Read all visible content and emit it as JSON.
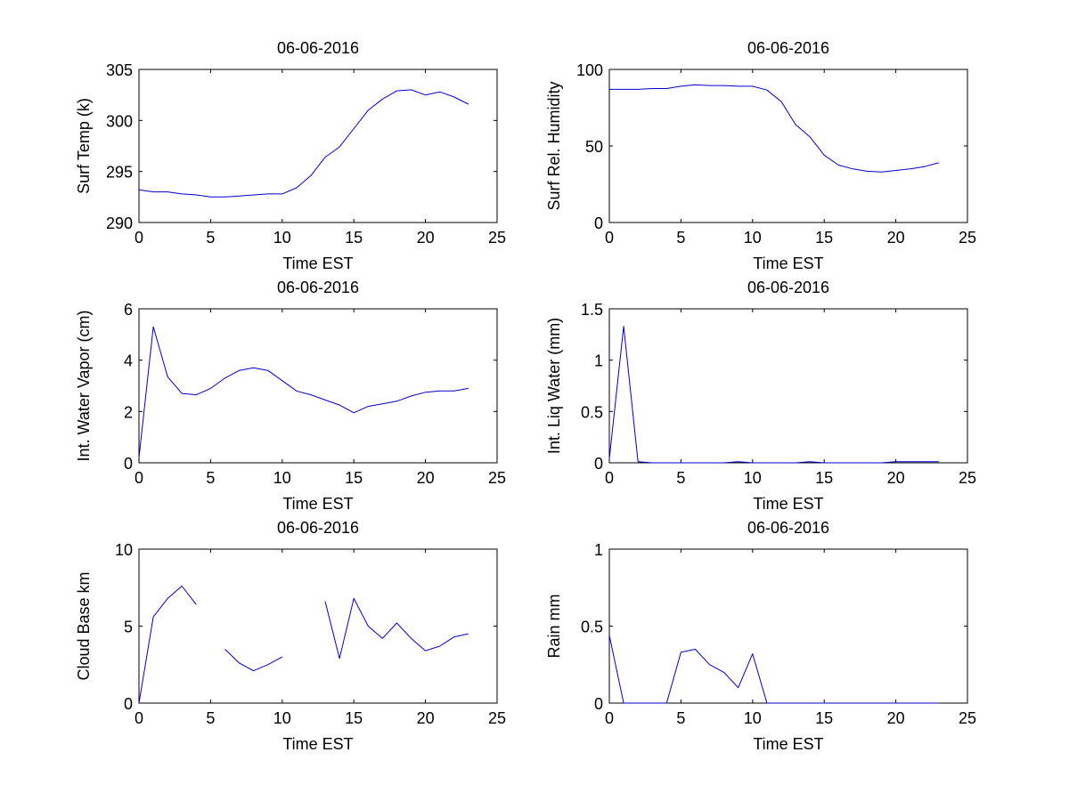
{
  "figure": {
    "background": "#ffffff",
    "line_color": "#0000cc",
    "axes_color": "#000000"
  },
  "chart_data": [
    {
      "type": "line",
      "title": "06-06-2016",
      "xlabel": "Time EST",
      "ylabel": "Surf Temp (k)",
      "xlim": [
        0,
        25
      ],
      "ylim": [
        290,
        305
      ],
      "xticks": [
        0,
        5,
        10,
        15,
        20,
        25
      ],
      "yticks": [
        290,
        295,
        300,
        305
      ],
      "xtick_labels": [
        "0",
        "5",
        "10",
        "15",
        "20",
        "25"
      ],
      "ytick_labels": [
        "290",
        "295",
        "300",
        "305"
      ],
      "series": [
        {
          "name": "Surf Temp",
          "x": [
            0,
            1,
            2,
            3,
            4,
            5,
            6,
            7,
            8,
            9,
            10,
            11,
            12,
            13,
            14,
            15,
            16,
            17,
            18,
            19,
            20,
            21,
            22,
            23
          ],
          "y": [
            293.2,
            293.0,
            293.0,
            292.8,
            292.7,
            292.5,
            292.5,
            292.6,
            292.7,
            292.8,
            292.8,
            293.4,
            294.6,
            296.4,
            297.4,
            299.2,
            301.0,
            302.1,
            302.9,
            303.0,
            302.5,
            302.8,
            302.3,
            301.6
          ]
        }
      ]
    },
    {
      "type": "line",
      "title": "06-06-2016",
      "xlabel": "Time EST",
      "ylabel": "Surf Rel. Humidity",
      "xlim": [
        0,
        25
      ],
      "ylim": [
        0,
        100
      ],
      "xticks": [
        0,
        5,
        10,
        15,
        20,
        25
      ],
      "yticks": [
        0,
        50,
        100
      ],
      "xtick_labels": [
        "0",
        "5",
        "10",
        "15",
        "20",
        "25"
      ],
      "ytick_labels": [
        "0",
        "50",
        "100"
      ],
      "series": [
        {
          "name": "Surf Rel. Humidity",
          "x": [
            0,
            1,
            2,
            3,
            4,
            5,
            6,
            7,
            8,
            9,
            10,
            11,
            12,
            13,
            14,
            15,
            16,
            17,
            18,
            19,
            20,
            21,
            22,
            23
          ],
          "y": [
            87,
            87,
            87,
            87.5,
            87.5,
            89,
            90,
            89.5,
            89.5,
            89,
            89,
            86.5,
            79,
            64,
            56,
            44,
            37.5,
            35,
            33.5,
            33,
            34,
            35,
            36.5,
            39
          ]
        }
      ]
    },
    {
      "type": "line",
      "title": "06-06-2016",
      "xlabel": "Time EST",
      "ylabel": "Int. Water Vapor (cm)",
      "xlim": [
        0,
        25
      ],
      "ylim": [
        0,
        6
      ],
      "xticks": [
        0,
        5,
        10,
        15,
        20,
        25
      ],
      "yticks": [
        0,
        2,
        4,
        6
      ],
      "xtick_labels": [
        "0",
        "5",
        "10",
        "15",
        "20",
        "25"
      ],
      "ytick_labels": [
        "0",
        "2",
        "4",
        "6"
      ],
      "series": [
        {
          "name": "Int. Water Vapor",
          "x": [
            0,
            1,
            2,
            3,
            4,
            5,
            6,
            7,
            8,
            9,
            10,
            11,
            12,
            13,
            14,
            15,
            16,
            17,
            18,
            19,
            20,
            21,
            22,
            23
          ],
          "y": [
            0.2,
            5.3,
            3.35,
            2.7,
            2.65,
            2.9,
            3.3,
            3.6,
            3.7,
            3.6,
            3.2,
            2.8,
            2.65,
            2.45,
            2.25,
            1.95,
            2.2,
            2.3,
            2.4,
            2.6,
            2.75,
            2.8,
            2.8,
            2.9
          ]
        }
      ]
    },
    {
      "type": "line",
      "title": "06-06-2016",
      "xlabel": "Time EST",
      "ylabel": "Int. Liq Water (mm)",
      "xlim": [
        0,
        25
      ],
      "ylim": [
        0,
        1.5
      ],
      "xticks": [
        0,
        5,
        10,
        15,
        20,
        25
      ],
      "yticks": [
        0,
        0.5,
        1,
        1.5
      ],
      "xtick_labels": [
        "0",
        "5",
        "10",
        "15",
        "20",
        "25"
      ],
      "ytick_labels": [
        "0",
        "0.5",
        "1",
        "1.5"
      ],
      "series": [
        {
          "name": "Int. Liq Water",
          "x": [
            0,
            1,
            2,
            3,
            4,
            5,
            6,
            7,
            8,
            9,
            10,
            11,
            12,
            13,
            14,
            15,
            16,
            17,
            18,
            19,
            20,
            21,
            22,
            23
          ],
          "y": [
            0.04,
            1.33,
            0.01,
            0,
            0,
            0,
            0,
            0,
            0,
            0.01,
            0,
            0,
            0,
            0,
            0.01,
            0,
            0,
            0,
            0,
            0,
            0.01,
            0.01,
            0.01,
            0.01
          ]
        }
      ]
    },
    {
      "type": "line",
      "title": "06-06-2016",
      "xlabel": "Time EST",
      "ylabel": "Cloud Base km",
      "xlim": [
        0,
        25
      ],
      "ylim": [
        0,
        10
      ],
      "xticks": [
        0,
        5,
        10,
        15,
        20,
        25
      ],
      "yticks": [
        0,
        5,
        10
      ],
      "xtick_labels": [
        "0",
        "5",
        "10",
        "15",
        "20",
        "25"
      ],
      "ytick_labels": [
        "0",
        "5",
        "10"
      ],
      "series": [
        {
          "name": "Cloud Base",
          "x": [
            0,
            1,
            2,
            3,
            4,
            5,
            6,
            7,
            8,
            9,
            10,
            11,
            12,
            13,
            14,
            15,
            16,
            17,
            18,
            19,
            20,
            21,
            22,
            23
          ],
          "y": [
            0,
            5.6,
            6.8,
            7.6,
            6.4,
            null,
            3.5,
            2.6,
            2.1,
            2.5,
            3.0,
            null,
            null,
            6.6,
            2.9,
            6.8,
            5.0,
            4.2,
            5.2,
            4.2,
            3.4,
            3.7,
            4.3,
            4.5
          ]
        }
      ]
    },
    {
      "type": "line",
      "title": "06-06-2016",
      "xlabel": "Time EST",
      "ylabel": "Rain mm",
      "xlim": [
        0,
        25
      ],
      "ylim": [
        0,
        1
      ],
      "xticks": [
        0,
        5,
        10,
        15,
        20,
        25
      ],
      "yticks": [
        0,
        0.5,
        1
      ],
      "xtick_labels": [
        "0",
        "5",
        "10",
        "15",
        "20",
        "25"
      ],
      "ytick_labels": [
        "0",
        "0.5",
        "1"
      ],
      "series": [
        {
          "name": "Rain",
          "x": [
            0,
            1,
            2,
            3,
            4,
            5,
            6,
            7,
            8,
            9,
            10,
            11,
            12,
            13,
            14,
            15,
            16,
            17,
            18,
            19,
            20,
            21,
            22,
            23
          ],
          "y": [
            0.44,
            0,
            0,
            0,
            0,
            0.33,
            0.35,
            0.25,
            0.2,
            0.1,
            0.32,
            0,
            0,
            0,
            0,
            0,
            0,
            0,
            0,
            0,
            0,
            0,
            0,
            0
          ]
        }
      ]
    }
  ]
}
